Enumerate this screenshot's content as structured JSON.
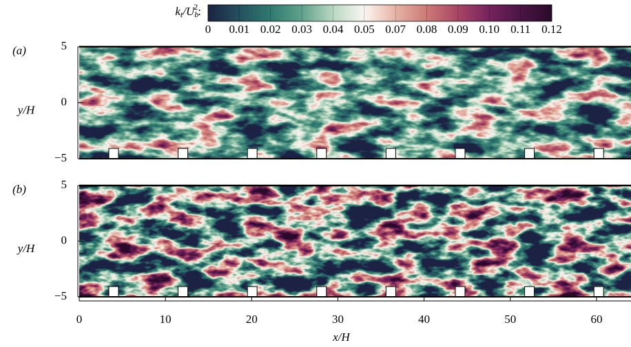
{
  "colorbar": {
    "label_parts": [
      "k",
      "t",
      "/U",
      "b",
      "2",
      ":"
    ],
    "levels": [
      "0",
      "0.01",
      "0.02",
      "0.03",
      "0.04",
      "0.05",
      "0.07",
      "0.08",
      "0.09",
      "0.10",
      "0.11",
      "0.12"
    ],
    "colors": [
      "#1c2343",
      "#24505e",
      "#2f7a70",
      "#5fa18b",
      "#b9d8c2",
      "#fbf6f2",
      "#e6b3a4",
      "#cc7a76",
      "#a84565",
      "#76225d",
      "#4a1545",
      "#2a0a2a"
    ]
  },
  "chart_data": [
    {
      "type": "heatmap",
      "panel_label": "(a)",
      "ylabel": "y/H",
      "xlim": [
        0,
        64
      ],
      "ylim": [
        -5,
        5
      ],
      "yticks": [
        {
          "value": -5,
          "label": "−5"
        },
        0,
        5
      ]
    },
    {
      "type": "heatmap",
      "panel_label": "(b)",
      "ylabel": "y/H",
      "xlabel": "x/H",
      "xlim": [
        0,
        64
      ],
      "ylim": [
        -5,
        5
      ],
      "yticks": [
        {
          "value": -5,
          "label": "−5"
        },
        0,
        5
      ],
      "xticks": [
        0,
        10,
        20,
        30,
        40,
        50,
        60
      ]
    }
  ]
}
